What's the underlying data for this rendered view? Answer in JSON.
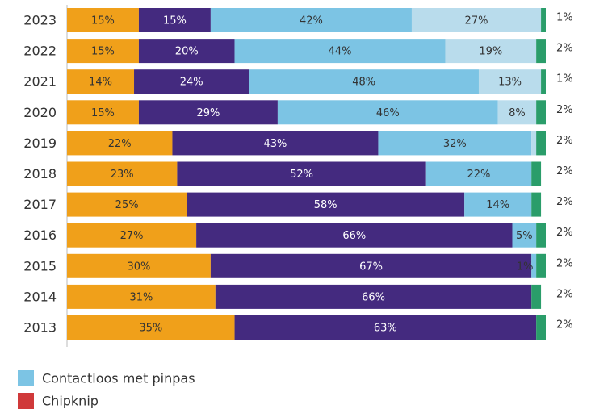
{
  "chart_data": {
    "type": "stacked-bar-horizontal",
    "categories": [
      "2023",
      "2022",
      "2021",
      "2020",
      "2019",
      "2018",
      "2017",
      "2016",
      "2015",
      "2014",
      "2013"
    ],
    "xlim": [
      0,
      100
    ],
    "series": [
      {
        "color": "#f0a01a",
        "values": [
          15,
          15,
          14,
          15,
          22,
          23,
          25,
          27,
          30,
          31,
          35
        ],
        "value_labels": [
          "15%",
          "15%",
          "14%",
          "15%",
          "22%",
          "23%",
          "25%",
          "27%",
          "30%",
          "31%",
          "35%"
        ]
      },
      {
        "color": "#442a7f",
        "values": [
          15,
          20,
          24,
          29,
          43,
          52,
          58,
          66,
          67,
          66,
          63
        ],
        "value_labels": [
          "15%",
          "20%",
          "24%",
          "29%",
          "43%",
          "52%",
          "58%",
          "66%",
          "67%",
          "66%",
          "63%"
        ]
      },
      {
        "name": "Contactloos met pinpas",
        "color": "#7cc4e4",
        "values": [
          42,
          44,
          48,
          46,
          32,
          22,
          14,
          5,
          1,
          null,
          null
        ],
        "value_labels": [
          "42%",
          "44%",
          "48%",
          "46%",
          "32%",
          "22%",
          "14%",
          "5%",
          "1%",
          null,
          null
        ]
      },
      {
        "color": "#b9dcec",
        "values": [
          27,
          19,
          13,
          8,
          1,
          null,
          null,
          null,
          null,
          null,
          null
        ],
        "value_labels": [
          "27%",
          "19%",
          "13%",
          "8%",
          null,
          null,
          null,
          null,
          null,
          null,
          null
        ]
      },
      {
        "color": "#2a9d6a",
        "values": [
          1,
          2,
          1,
          2,
          2,
          2,
          2,
          2,
          2,
          2,
          2
        ],
        "value_labels": [
          "1%",
          "2%",
          "1%",
          "2%",
          "2%",
          "2%",
          "2%",
          "2%",
          "2%",
          "2%",
          "2%"
        ]
      }
    ],
    "legend": [
      {
        "name": "Contactloos met pinpas",
        "color": "#7cc4e4"
      },
      {
        "name": "Chipknip",
        "color": "#d0393a"
      }
    ]
  }
}
